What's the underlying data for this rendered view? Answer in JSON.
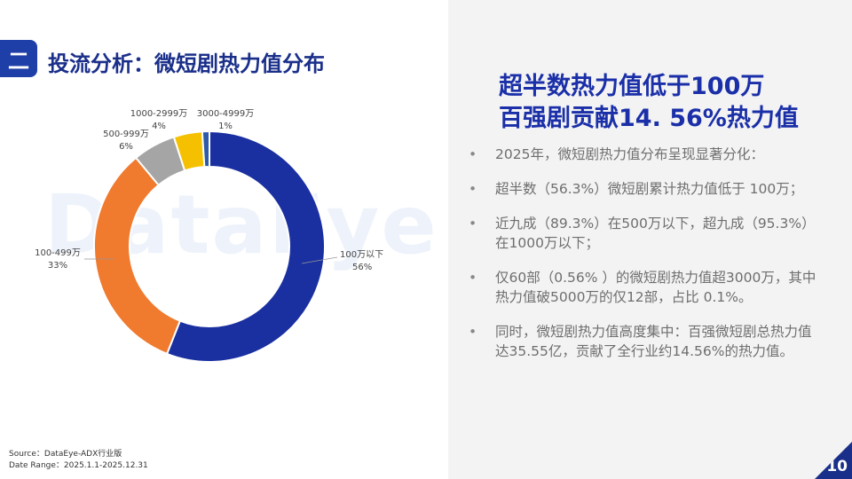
{
  "section": {
    "badge": "二",
    "title": "投流分析：微短剧热力值分布"
  },
  "watermark": "DataEye",
  "headline": {
    "line1": "超半数热力值低于100万",
    "line2": "百强剧贡献14. 56%热力值"
  },
  "bullets": [
    "2025年，微短剧热力值分布呈现显著分化：",
    "超半数（56.3%）微短剧累计热力值低于 100万；",
    "近九成（89.3%）在500万以下，超九成（95.3%）在1000万以下；",
    "仅60部（0.56% ）的微短剧热力值超3000万，其中热力值破5000万的仅12部，占比 0.1%。",
    "同时，微短剧热力值高度集中：百强微短剧总热力值达35.55亿，贡献了全行业约14.56%的热力值。"
  ],
  "bullet_symbol": "•",
  "source": {
    "line1": "Source：DataEye-ADX行业版",
    "line2": "Date Range：2025.1.1-2025.12.31"
  },
  "page_number": "10",
  "chart_data": {
    "type": "pie",
    "donut": true,
    "categories": [
      "100万以下",
      "100-499万",
      "500-999万",
      "1000-2999万",
      "3000-4999万"
    ],
    "values": [
      56,
      33,
      6,
      4,
      1
    ],
    "labels": [
      "56%",
      "33%",
      "6%",
      "4%",
      "1%"
    ],
    "colors": [
      "#1a2fa0",
      "#f07a2e",
      "#a5a5a5",
      "#f5c000",
      "#2e5aa8"
    ],
    "start": "12 o'clock, clockwise"
  }
}
